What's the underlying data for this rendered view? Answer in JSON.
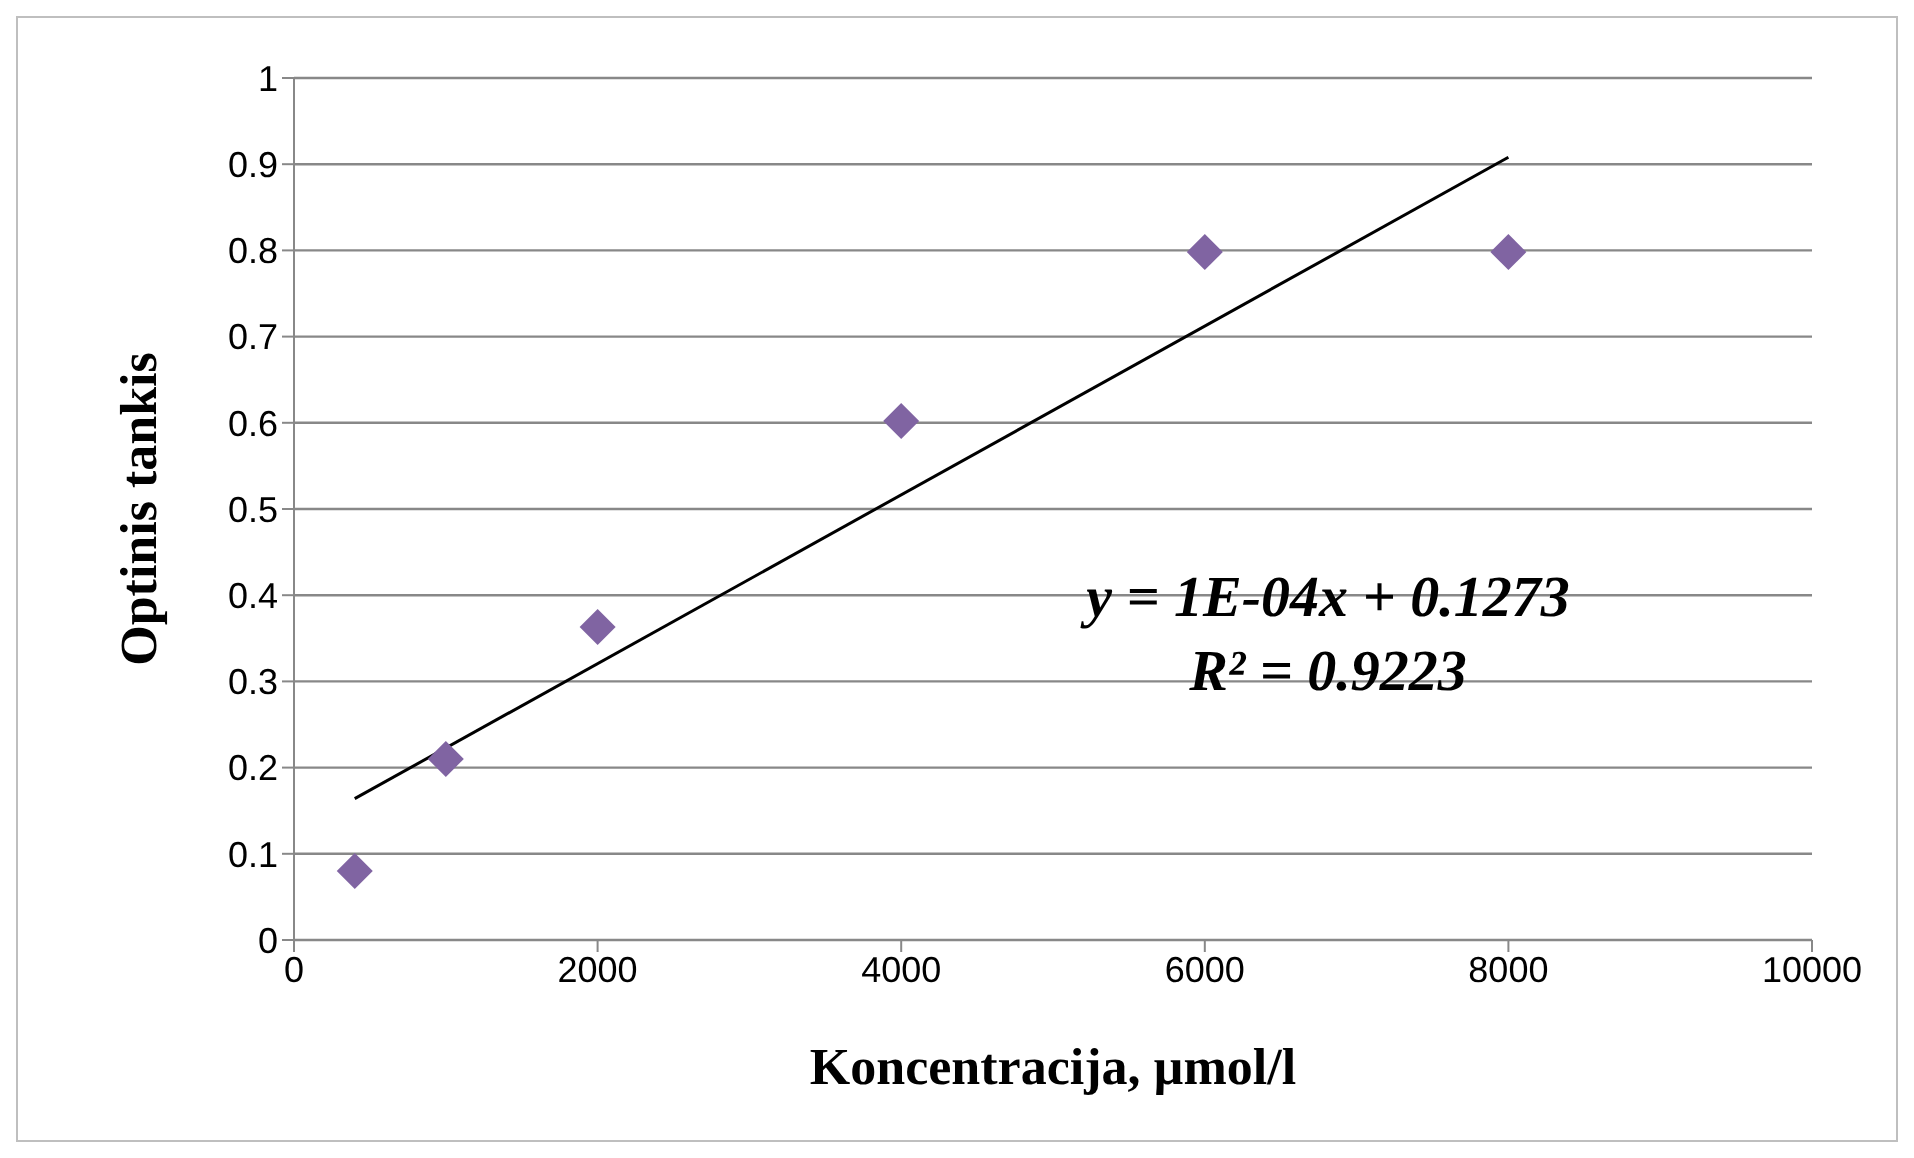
{
  "chart_data": {
    "type": "scatter",
    "xlabel": "Koncentracija, µmol/l",
    "ylabel": "Optinis tankis",
    "x": [
      400,
      1000,
      2000,
      4000,
      6000,
      8000
    ],
    "series": [
      {
        "color": "#8064a2",
        "marker": "diamond",
        "values": [
          0.08,
          0.21,
          0.363,
          0.602,
          0.798,
          0.798
        ]
      },
      {
        "type": "line",
        "color": "#000000",
        "marker": "none",
        "line_style": "solid",
        "x": [
          400,
          8000
        ],
        "values": [
          0.164,
          0.908
        ]
      }
    ],
    "xlim": [
      0,
      10000
    ],
    "xticks": [
      0,
      2000,
      4000,
      6000,
      8000,
      10000
    ],
    "ylim": [
      0,
      1
    ],
    "yticks": [
      0,
      0.1,
      0.2,
      0.3,
      0.4,
      0.5,
      0.6,
      0.7,
      0.8,
      0.9,
      1
    ],
    "grid": "y",
    "annotations": [
      "y = 1E-04x + 0.1273",
      "R² = 0.9223"
    ]
  }
}
